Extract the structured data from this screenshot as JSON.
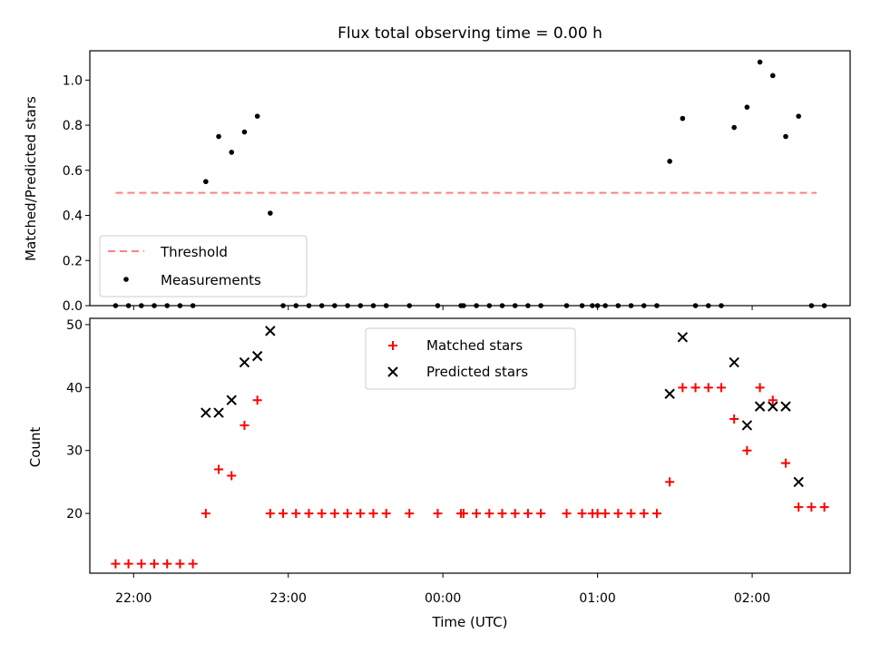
{
  "chart_data": [
    {
      "type": "scatter",
      "title": "Flux total observing time = 0.00 h",
      "xlabel": "",
      "ylabel": "Matched/Predicted stars",
      "ylim": [
        0,
        1.13
      ],
      "yticks": [
        "0.0",
        "0.2",
        "0.4",
        "0.6",
        "0.8",
        "1.0"
      ],
      "legend_position": "lower-left",
      "threshold": {
        "name": "Threshold",
        "value": 0.5,
        "x_range": [
          "21:53",
          "02:25"
        ],
        "color": "#ff8080",
        "style": "dashed"
      },
      "series": [
        {
          "name": "Measurements",
          "marker": "dot",
          "color": "#000000",
          "points": [
            [
              "21:53",
              0
            ],
            [
              "21:58",
              0
            ],
            [
              "22:03",
              0
            ],
            [
              "22:08",
              0
            ],
            [
              "22:13",
              0
            ],
            [
              "22:18",
              0
            ],
            [
              "22:23",
              0
            ],
            [
              "22:28",
              0.55
            ],
            [
              "22:33",
              0.75
            ],
            [
              "22:38",
              0.68
            ],
            [
              "22:43",
              0.77
            ],
            [
              "22:48",
              0.84
            ],
            [
              "22:53",
              0.41
            ],
            [
              "22:58",
              0
            ],
            [
              "23:03",
              0
            ],
            [
              "23:08",
              0
            ],
            [
              "23:13",
              0
            ],
            [
              "23:18",
              0
            ],
            [
              "23:23",
              0
            ],
            [
              "23:28",
              0
            ],
            [
              "23:33",
              0
            ],
            [
              "23:38",
              0
            ],
            [
              "23:47",
              0
            ],
            [
              "23:58",
              0
            ],
            [
              "00:07",
              0
            ],
            [
              "00:08",
              0
            ],
            [
              "00:13",
              0
            ],
            [
              "00:18",
              0
            ],
            [
              "00:23",
              0
            ],
            [
              "00:28",
              0
            ],
            [
              "00:33",
              0
            ],
            [
              "00:38",
              0
            ],
            [
              "00:48",
              0
            ],
            [
              "00:54",
              0
            ],
            [
              "00:58",
              0
            ],
            [
              "01:00",
              0
            ],
            [
              "01:03",
              0
            ],
            [
              "01:08",
              0
            ],
            [
              "01:13",
              0
            ],
            [
              "01:18",
              0
            ],
            [
              "01:23",
              0
            ],
            [
              "01:28",
              0.64
            ],
            [
              "01:33",
              0.83
            ],
            [
              "01:38",
              0
            ],
            [
              "01:43",
              0
            ],
            [
              "01:48",
              0
            ],
            [
              "01:53",
              0.79
            ],
            [
              "01:58",
              0.88
            ],
            [
              "02:03",
              1.08
            ],
            [
              "02:08",
              1.02
            ],
            [
              "02:13",
              0.75
            ],
            [
              "02:18",
              0.84
            ],
            [
              "02:23",
              0
            ],
            [
              "02:28",
              0
            ]
          ]
        }
      ]
    },
    {
      "type": "scatter",
      "title": "",
      "xlabel": "Time (UTC)",
      "ylabel": "Count",
      "ylim": [
        10.5,
        51
      ],
      "yticks": [
        "20",
        "30",
        "40",
        "50"
      ],
      "xticks": [
        "22:00",
        "23:00",
        "00:00",
        "01:00",
        "02:00"
      ],
      "x_range": [
        "21:43",
        "02:38"
      ],
      "legend_position": "upper-center",
      "series": [
        {
          "name": "Matched stars",
          "marker": "plus",
          "color": "#ff0000",
          "points": [
            [
              "21:53",
              12
            ],
            [
              "21:58",
              12
            ],
            [
              "22:03",
              12
            ],
            [
              "22:08",
              12
            ],
            [
              "22:13",
              12
            ],
            [
              "22:18",
              12
            ],
            [
              "22:23",
              12
            ],
            [
              "22:28",
              20
            ],
            [
              "22:33",
              27
            ],
            [
              "22:38",
              26
            ],
            [
              "22:43",
              34
            ],
            [
              "22:48",
              38
            ],
            [
              "22:53",
              20
            ],
            [
              "22:58",
              20
            ],
            [
              "23:03",
              20
            ],
            [
              "23:08",
              20
            ],
            [
              "23:13",
              20
            ],
            [
              "23:18",
              20
            ],
            [
              "23:23",
              20
            ],
            [
              "23:28",
              20
            ],
            [
              "23:33",
              20
            ],
            [
              "23:38",
              20
            ],
            [
              "23:47",
              20
            ],
            [
              "23:58",
              20
            ],
            [
              "00:07",
              20
            ],
            [
              "00:08",
              20
            ],
            [
              "00:13",
              20
            ],
            [
              "00:18",
              20
            ],
            [
              "00:23",
              20
            ],
            [
              "00:28",
              20
            ],
            [
              "00:33",
              20
            ],
            [
              "00:38",
              20
            ],
            [
              "00:48",
              20
            ],
            [
              "00:54",
              20
            ],
            [
              "00:58",
              20
            ],
            [
              "01:00",
              20
            ],
            [
              "01:03",
              20
            ],
            [
              "01:08",
              20
            ],
            [
              "01:13",
              20
            ],
            [
              "01:18",
              20
            ],
            [
              "01:23",
              20
            ],
            [
              "01:28",
              25
            ],
            [
              "01:33",
              40
            ],
            [
              "01:38",
              40
            ],
            [
              "01:43",
              40
            ],
            [
              "01:48",
              40
            ],
            [
              "01:53",
              35
            ],
            [
              "01:58",
              30
            ],
            [
              "02:03",
              40
            ],
            [
              "02:08",
              38
            ],
            [
              "02:13",
              28
            ],
            [
              "02:18",
              21
            ],
            [
              "02:23",
              21
            ],
            [
              "02:28",
              21
            ]
          ]
        },
        {
          "name": "Predicted stars",
          "marker": "x",
          "color": "#000000",
          "points": [
            [
              "22:28",
              36
            ],
            [
              "22:33",
              36
            ],
            [
              "22:38",
              38
            ],
            [
              "22:43",
              44
            ],
            [
              "22:48",
              45
            ],
            [
              "22:53",
              49
            ],
            [
              "01:28",
              39
            ],
            [
              "01:33",
              48
            ],
            [
              "01:53",
              44
            ],
            [
              "01:58",
              34
            ],
            [
              "02:03",
              37
            ],
            [
              "02:08",
              37
            ],
            [
              "02:13",
              37
            ],
            [
              "02:18",
              25
            ]
          ]
        }
      ]
    }
  ]
}
